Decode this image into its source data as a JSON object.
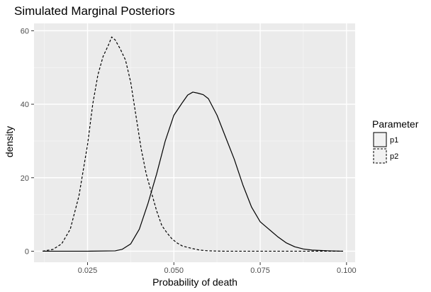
{
  "chart_data": {
    "type": "line",
    "title": "Simulated Marginal Posteriors",
    "xlabel": "Probability of death",
    "ylabel": "density",
    "xlim": [
      0.0095,
      0.1025
    ],
    "ylim": [
      -3,
      62
    ],
    "x_ticks": [
      {
        "value": 0.025,
        "label": "0.025"
      },
      {
        "value": 0.05,
        "label": "0.050"
      },
      {
        "value": 0.075,
        "label": "0.075"
      },
      {
        "value": 0.1,
        "label": "0.100"
      }
    ],
    "y_ticks": [
      {
        "value": 0,
        "label": "0"
      },
      {
        "value": 20,
        "label": "20"
      },
      {
        "value": 40,
        "label": "40"
      },
      {
        "value": 60,
        "label": "60"
      }
    ],
    "grid": true,
    "legend": {
      "title": "Parameter",
      "placement": "right"
    },
    "series": [
      {
        "name": "p1",
        "line_style": "solid",
        "color": "#000000",
        "points": [
          [
            0.012,
            0
          ],
          [
            0.025,
            0
          ],
          [
            0.033,
            0.1
          ],
          [
            0.035,
            0.5
          ],
          [
            0.0375,
            2
          ],
          [
            0.04,
            6
          ],
          [
            0.0425,
            13
          ],
          [
            0.045,
            21
          ],
          [
            0.0475,
            30
          ],
          [
            0.05,
            37
          ],
          [
            0.0525,
            40.5
          ],
          [
            0.054,
            42.5
          ],
          [
            0.0555,
            43.3
          ],
          [
            0.057,
            43
          ],
          [
            0.0585,
            42.6
          ],
          [
            0.06,
            41.5
          ],
          [
            0.0625,
            37
          ],
          [
            0.065,
            31
          ],
          [
            0.0675,
            25
          ],
          [
            0.07,
            18
          ],
          [
            0.0725,
            12
          ],
          [
            0.075,
            8
          ],
          [
            0.0775,
            6
          ],
          [
            0.08,
            4
          ],
          [
            0.0825,
            2.3
          ],
          [
            0.085,
            1.2
          ],
          [
            0.0875,
            0.6
          ],
          [
            0.09,
            0.3
          ],
          [
            0.095,
            0.1
          ],
          [
            0.099,
            0
          ]
        ]
      },
      {
        "name": "p2",
        "line_style": "dashed",
        "color": "#000000",
        "points": [
          [
            0.012,
            0
          ],
          [
            0.015,
            0.5
          ],
          [
            0.0175,
            2
          ],
          [
            0.02,
            6
          ],
          [
            0.0225,
            15
          ],
          [
            0.025,
            29
          ],
          [
            0.0265,
            40
          ],
          [
            0.028,
            48
          ],
          [
            0.0295,
            53
          ],
          [
            0.031,
            56
          ],
          [
            0.032,
            58.3
          ],
          [
            0.033,
            57.5
          ],
          [
            0.0345,
            55
          ],
          [
            0.036,
            52
          ],
          [
            0.0375,
            46
          ],
          [
            0.039,
            37
          ],
          [
            0.0405,
            28
          ],
          [
            0.042,
            21
          ],
          [
            0.0435,
            16
          ],
          [
            0.045,
            11
          ],
          [
            0.0465,
            7
          ],
          [
            0.048,
            5
          ],
          [
            0.0495,
            3.3
          ],
          [
            0.051,
            2.2
          ],
          [
            0.0525,
            1.4
          ],
          [
            0.055,
            0.8
          ],
          [
            0.0575,
            0.3
          ],
          [
            0.06,
            0.1
          ],
          [
            0.065,
            0
          ],
          [
            0.099,
            0
          ]
        ]
      }
    ]
  }
}
